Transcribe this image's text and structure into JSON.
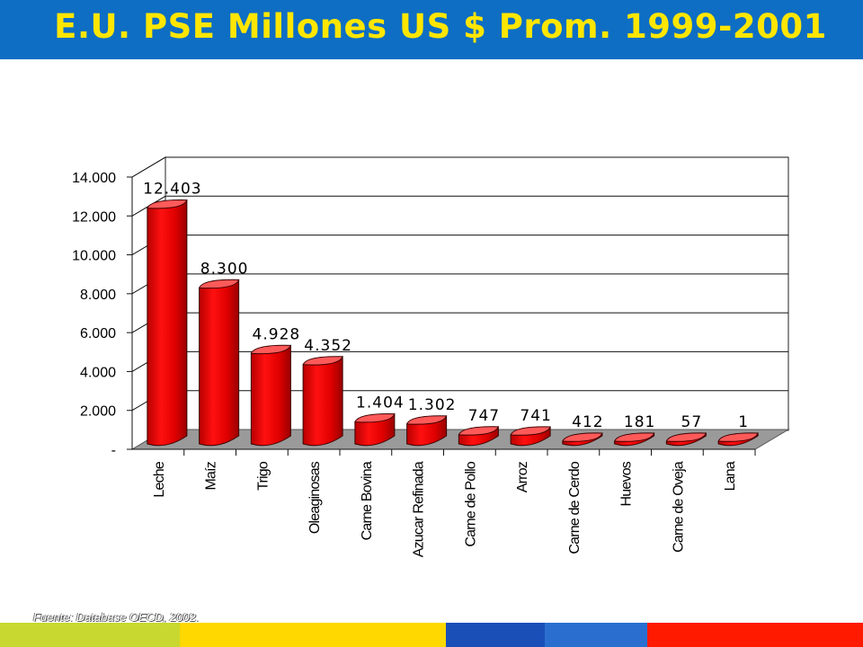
{
  "title": "E.U. PSE Millones US $  Prom. 1999-2001",
  "source_note": "Fuente: Database OECD, 2002.",
  "colors": {
    "title_bar": "#0d6ec4",
    "title_text": "#ffe600",
    "bar_fill": "#ee0000",
    "bar_top": "#ff5a5a",
    "floor": "#9a9a9a",
    "bottom_bar": [
      "#c8d830",
      "#ffd800",
      "#1a4fb8",
      "#2a6fd0",
      "#ff1a00"
    ]
  },
  "chart_data": {
    "type": "bar",
    "title": "E.U. PSE Millones US $  Prom. 1999-2001",
    "categories": [
      "Leche",
      "Maíz",
      "Trigo",
      "Oleaginosas",
      "Carne Bovina",
      "Azucar Refinada",
      "Carne de Pollo",
      "Arroz",
      "Carne de Cerdo",
      "Huevos",
      "Carne de Oveja",
      "Lana"
    ],
    "values": [
      12403,
      8300,
      4928,
      4352,
      1404,
      1302,
      747,
      741,
      412,
      181,
      57,
      1
    ],
    "value_labels": [
      "12.403",
      "8.300",
      "4.928",
      "4.352",
      "1.404",
      "1.302",
      "747",
      "741",
      "412",
      "181",
      "57",
      "1"
    ],
    "ylim": [
      0,
      14000
    ],
    "yticks": [
      0,
      2000,
      4000,
      6000,
      8000,
      10000,
      12000,
      14000
    ],
    "ytick_labels": [
      "-",
      "2.000",
      "4.000",
      "6.000",
      "8.000",
      "10.000",
      "12.000",
      "14.000"
    ],
    "xlabel": "",
    "ylabel": "",
    "grid": true,
    "legend": "none"
  }
}
